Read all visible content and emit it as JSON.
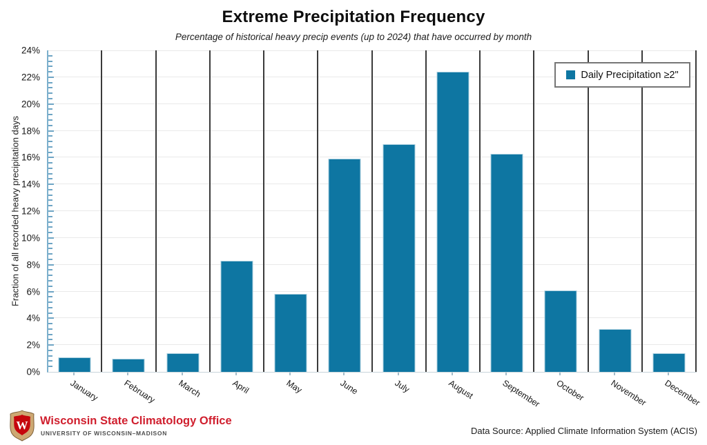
{
  "header": {
    "title": "Extreme Precipitation Frequency",
    "subtitle": "Percentage of historical heavy precip events (up to 2024) that have occurred by month"
  },
  "chart_data": {
    "type": "bar",
    "categories": [
      "January",
      "February",
      "March",
      "April",
      "May",
      "June",
      "July",
      "August",
      "September",
      "October",
      "November",
      "December"
    ],
    "values": [
      1.1,
      1.0,
      1.4,
      8.3,
      5.8,
      15.9,
      17.0,
      22.4,
      16.3,
      6.1,
      3.2,
      1.4
    ],
    "title": "Extreme Precipitation Frequency",
    "subtitle": "Percentage of historical heavy precip events (up to 2024) that have occurred by month",
    "xlabel": "",
    "ylabel": "Fraction of all recorded heavy precipitation days",
    "ylim": [
      0,
      24
    ],
    "ytick_step": 2,
    "minor_tick_step": 0.4,
    "ytick_suffix": "%",
    "grid": "horizontal",
    "legend": {
      "label": "Daily Precipitation ≥2\"",
      "position": "top-right"
    },
    "colors": {
      "bar_fill": "#0e76a2",
      "bar_edge": "#a9cfdf",
      "month_separator": "#3a3a3a",
      "axis_blue": "#7cb0cd",
      "gridline": "#e9e9e9"
    }
  },
  "footer": {
    "org_name": "Wisconsin State Climatology Office",
    "university": "UNIVERSITY OF WISCONSIN–MADISON",
    "data_source": "Data Source: Applied Climate Information System (ACIS)",
    "brand_red": "#c5050c",
    "crest_gold": "#cda873"
  }
}
